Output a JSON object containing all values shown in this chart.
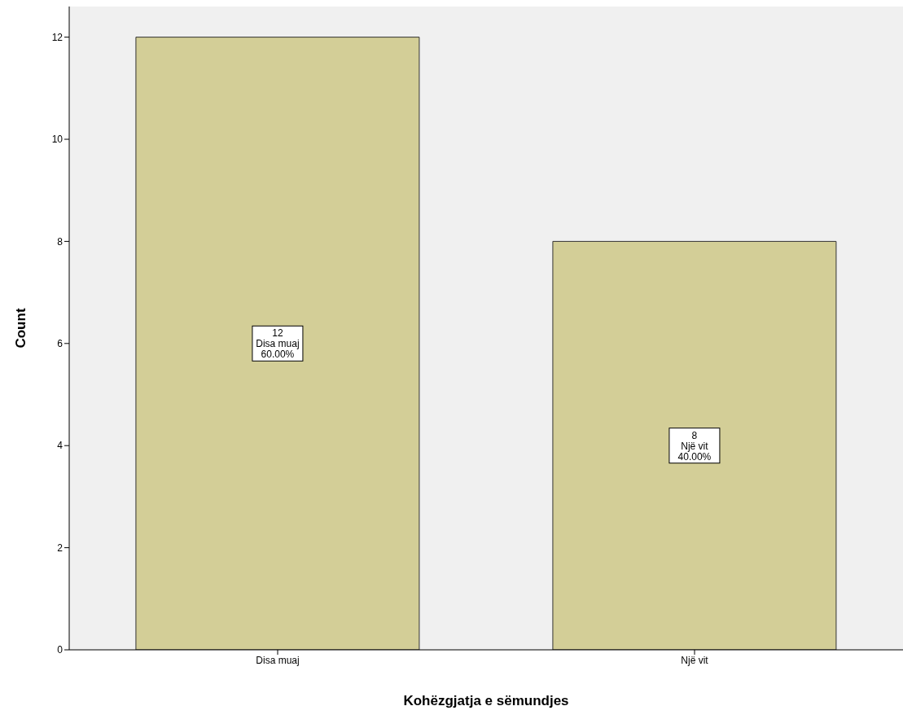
{
  "chart_data": {
    "type": "bar",
    "xlabel": "Kohëzgjatja e sëmundjes",
    "ylabel": "Count",
    "categories": [
      "Disa muaj",
      "Një vit"
    ],
    "values": [
      12,
      8
    ],
    "value_labels": [
      "12\nDisa muaj\n60.00%",
      "8\nNjë vit\n40.00%"
    ],
    "color": "#d3ce97",
    "ylim": [
      0,
      12.6
    ],
    "yticks": [
      0,
      2,
      4,
      6,
      8,
      10,
      12
    ],
    "grid": false
  }
}
